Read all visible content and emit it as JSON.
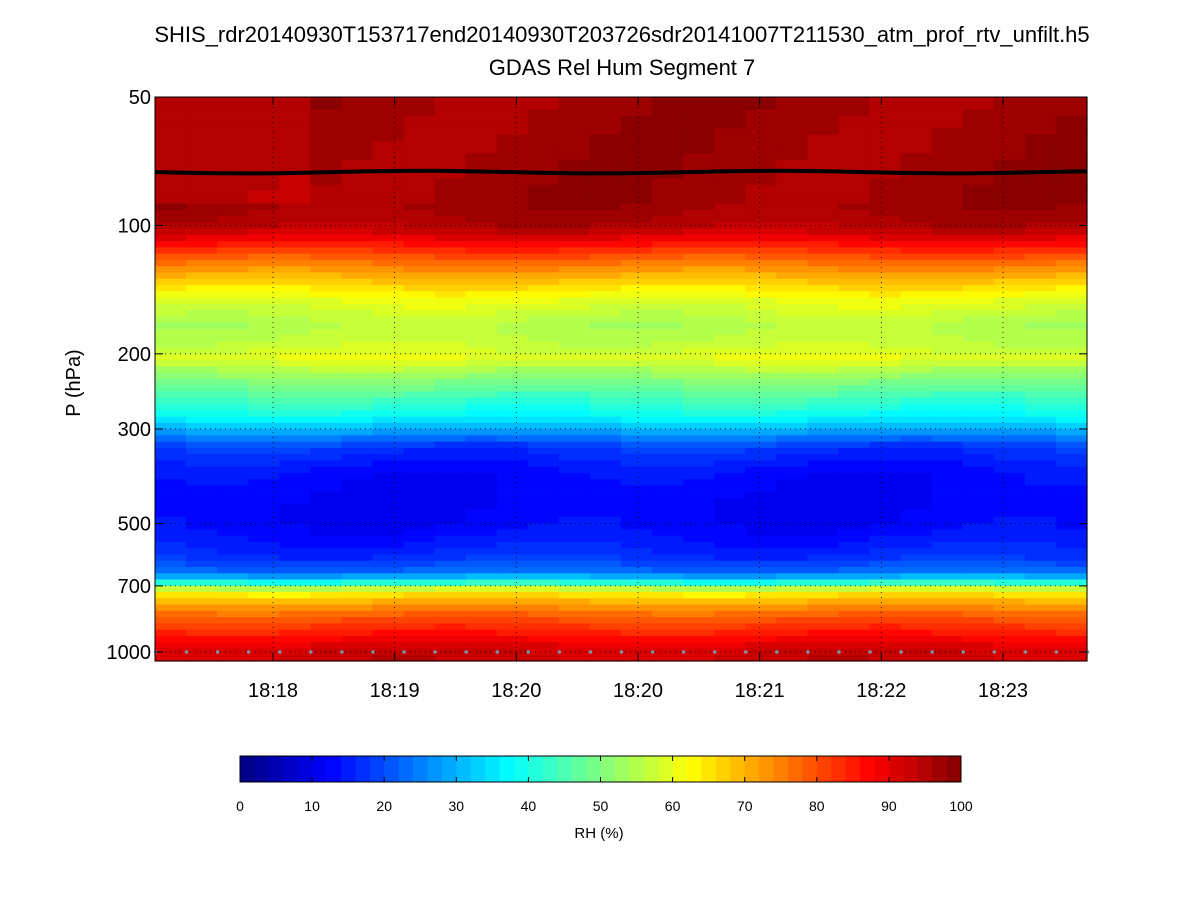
{
  "chart_data": {
    "type": "heatmap",
    "title_line1": "SHIS_rdr20140930T153717end20140930T203726sdr20141007T211530_atm_prof_rtv_unfilt.h5",
    "title_line2": "GDAS Rel Hum Segment 7",
    "ylabel": "P (hPa)",
    "y_scale": "log",
    "y_reversed": true,
    "ylim": [
      50,
      1050
    ],
    "y_ticks": [
      50,
      100,
      200,
      300,
      500,
      700,
      1000
    ],
    "x_tick_labels": [
      "18:18",
      "18:19",
      "18:20",
      "18:20",
      "18:21",
      "18:22",
      "18:23"
    ],
    "grid": true,
    "colormap": "jet",
    "colorbar": {
      "label": "RH (%)",
      "range": [
        0,
        100
      ],
      "ticks": [
        0,
        10,
        20,
        30,
        40,
        50,
        60,
        70,
        80,
        90,
        100
      ],
      "levels": 50
    },
    "rh_profile": [
      {
        "p": 50,
        "rh": 97
      },
      {
        "p": 90,
        "rh": 97
      },
      {
        "p": 100,
        "rh": 95
      },
      {
        "p": 105,
        "rh": 92
      },
      {
        "p": 112,
        "rh": 85
      },
      {
        "p": 120,
        "rh": 78
      },
      {
        "p": 135,
        "rh": 68
      },
      {
        "p": 150,
        "rh": 60
      },
      {
        "p": 170,
        "rh": 55
      },
      {
        "p": 190,
        "rh": 57
      },
      {
        "p": 205,
        "rh": 60
      },
      {
        "p": 220,
        "rh": 54
      },
      {
        "p": 250,
        "rh": 45
      },
      {
        "p": 280,
        "rh": 38
      },
      {
        "p": 300,
        "rh": 30
      },
      {
        "p": 330,
        "rh": 18
      },
      {
        "p": 380,
        "rh": 13
      },
      {
        "p": 450,
        "rh": 12
      },
      {
        "p": 520,
        "rh": 13
      },
      {
        "p": 600,
        "rh": 17
      },
      {
        "p": 650,
        "rh": 23
      },
      {
        "p": 680,
        "rh": 35
      },
      {
        "p": 700,
        "rh": 50
      },
      {
        "p": 720,
        "rh": 62
      },
      {
        "p": 760,
        "rh": 70
      },
      {
        "p": 820,
        "rh": 78
      },
      {
        "p": 900,
        "rh": 85
      },
      {
        "p": 960,
        "rh": 90
      },
      {
        "p": 1000,
        "rh": 92
      },
      {
        "p": 1050,
        "rh": 93
      }
    ],
    "tropopause_line": {
      "p": 75,
      "color": "#000000"
    },
    "surface_marker_p": 1000
  }
}
